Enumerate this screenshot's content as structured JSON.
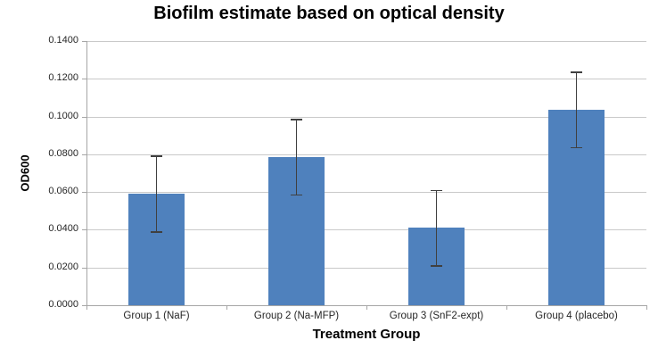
{
  "chart_data": {
    "type": "bar",
    "title": "Biofilm estimate based on optical density",
    "xlabel": "Treatment Group",
    "ylabel": "OD600",
    "categories": [
      "Group 1 (NaF)",
      "Group 2 (Na-MFP)",
      "Group 3 (SnF2-expt)",
      "Group 4 (placebo)"
    ],
    "values": [
      0.059,
      0.0785,
      0.041,
      0.1035
    ],
    "error_bars": [
      0.02,
      0.02,
      0.02,
      0.02
    ],
    "ylim": [
      0.0,
      0.14
    ],
    "ytick_step": 0.02,
    "ytick_labels": [
      "0.0000",
      "0.0200",
      "0.0400",
      "0.0600",
      "0.0800",
      "0.1000",
      "0.1200",
      "0.1400"
    ],
    "grid": "horizontal-on",
    "legend": "none",
    "colors": {
      "bar_fill": "#4F81BD",
      "error_bar": "#404040",
      "gridline": "#C9C9C9",
      "axis_line": "#A6A6A6",
      "tick_text": "#262626",
      "title_text": "#000000",
      "background": "#FFFFFF"
    }
  }
}
